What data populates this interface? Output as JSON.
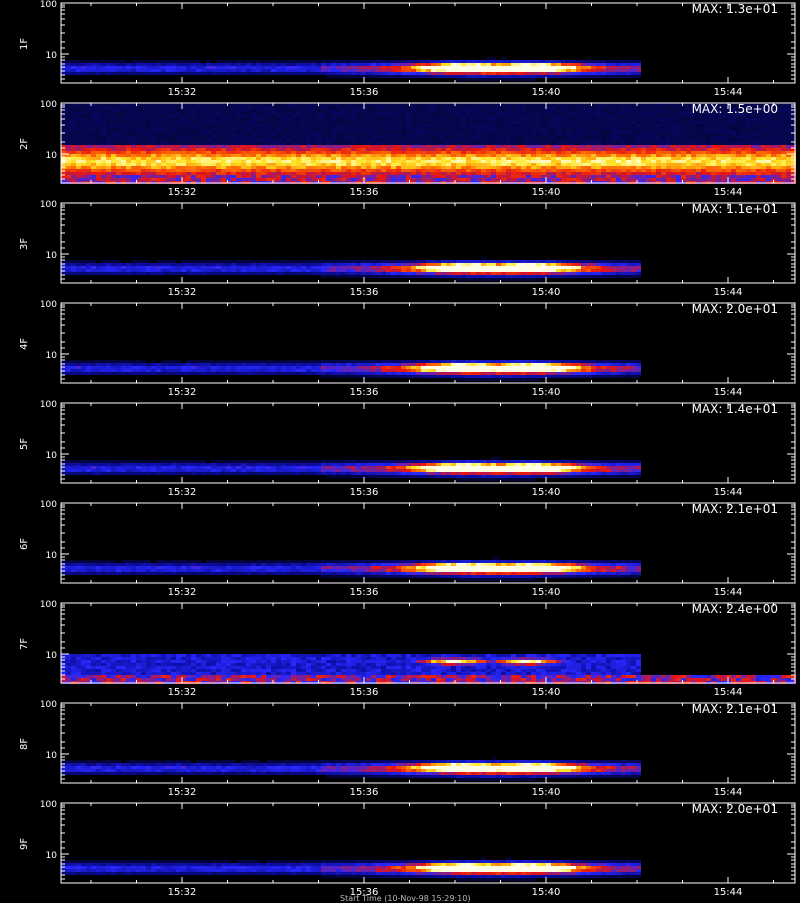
{
  "chart_data": {
    "type": "heatmap",
    "x_ticks": [
      "15:32",
      "15:36",
      "15:40",
      "15:44"
    ],
    "y_ticks": [
      "100",
      "10"
    ],
    "y_scale": "log",
    "footer": "Start Time (10-Nov-98 15:29:10)",
    "panels": [
      {
        "label": "1F",
        "max": "MAX: 1.3e+01",
        "kind": "burst"
      },
      {
        "label": "2F",
        "max": "MAX: 1.5e+00",
        "kind": "band"
      },
      {
        "label": "3F",
        "max": "MAX: 1.1e+01",
        "kind": "burst"
      },
      {
        "label": "4F",
        "max": "MAX: 2.0e+01",
        "kind": "burst"
      },
      {
        "label": "5F",
        "max": "MAX: 1.4e+01",
        "kind": "burst"
      },
      {
        "label": "6F",
        "max": "MAX: 2.1e+01",
        "kind": "burst"
      },
      {
        "label": "7F",
        "max": "MAX: 2.4e+00",
        "kind": "noisy"
      },
      {
        "label": "8F",
        "max": "MAX: 2.1e+01",
        "kind": "burst"
      },
      {
        "label": "9F",
        "max": "MAX: 2.0e+01",
        "kind": "burst"
      }
    ]
  }
}
